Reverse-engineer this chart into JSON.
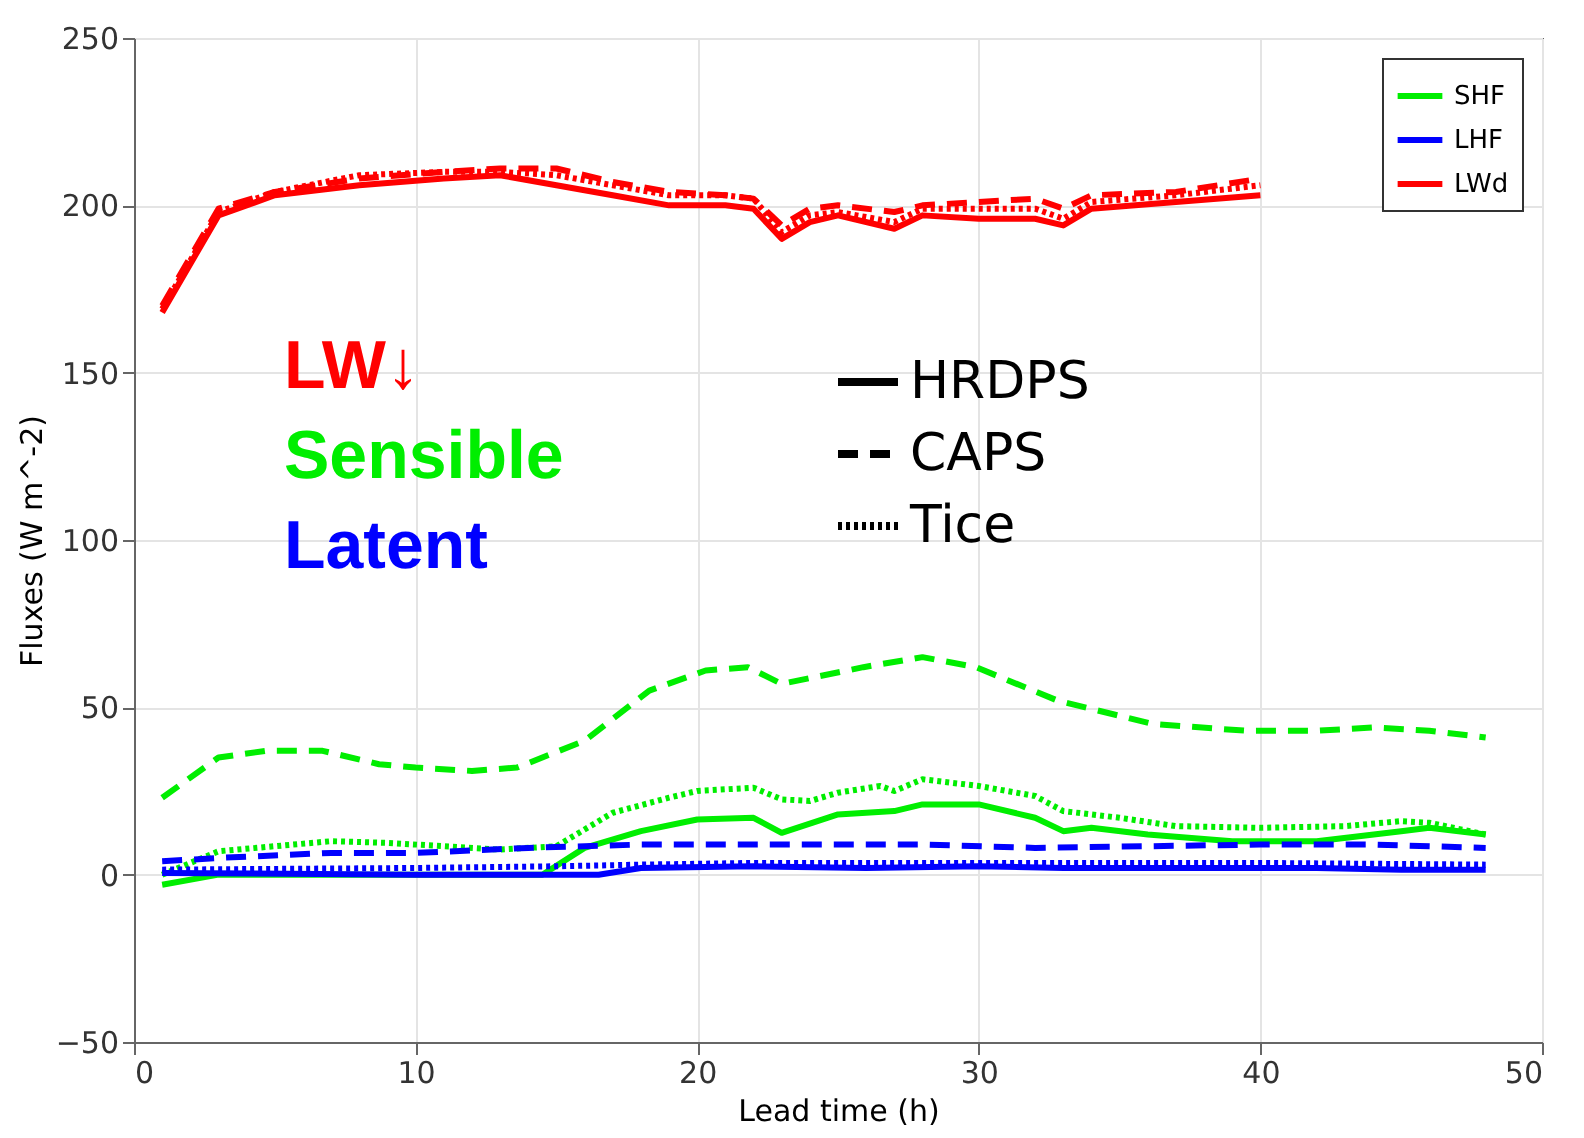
{
  "chart_data": {
    "type": "line",
    "xlabel": "Lead time (h)",
    "ylabel": "Fluxes (W m^-2)",
    "xlim": [
      0,
      50
    ],
    "xticks": [
      0,
      10,
      20,
      30,
      40,
      50
    ],
    "ylim": [
      -50,
      250
    ],
    "yticks": [
      -50,
      0,
      50,
      100,
      150,
      200,
      250
    ],
    "grid": true,
    "legend": "top right",
    "marker": "none",
    "annotations": [
      "LW↓",
      "Sensible",
      "Latent",
      "HRDPS",
      "CAPS",
      "Tice"
    ],
    "series": [
      {
        "name": "SHF",
        "color": "#00ee00",
        "line_style": "solid",
        "x": [
          1,
          3,
          7,
          10,
          14.5,
          16,
          18,
          20,
          22,
          23,
          25,
          27,
          28,
          30,
          32,
          33,
          34,
          36,
          39,
          42,
          45,
          46,
          48
        ],
        "values": [
          -3,
          0,
          0,
          0,
          0,
          8,
          13,
          16.5,
          17,
          12.5,
          18,
          19,
          21,
          21,
          17,
          13,
          14,
          12,
          10,
          10,
          13,
          14,
          12
        ]
      },
      {
        "color": "#00ee00",
        "line_style": "dashed",
        "x": [
          1,
          3,
          4.7,
          6.7,
          8.7,
          10,
          12,
          13.6,
          16,
          18.3,
          20.3,
          21.8,
          23,
          25.9,
          28,
          29.9,
          32.8,
          36.2,
          39.5,
          42,
          44,
          46,
          48
        ],
        "values": [
          23,
          35,
          37,
          37,
          33,
          32,
          31,
          32,
          40,
          55,
          61,
          62,
          57,
          62,
          65,
          62,
          52,
          45,
          43,
          43,
          44,
          43,
          41
        ]
      },
      {
        "color": "#00ee00",
        "line_style": "dotted",
        "x": [
          1,
          3,
          5,
          7,
          9,
          11,
          13,
          15,
          17,
          19,
          20,
          22,
          23,
          24,
          25,
          26.5,
          27,
          28,
          30,
          32,
          33,
          35,
          37,
          40,
          43,
          45,
          46,
          48
        ],
        "values": [
          0,
          7,
          8.5,
          10,
          9.5,
          8.5,
          7.5,
          8.5,
          18.5,
          23,
          25,
          26,
          22.5,
          22,
          24.5,
          26.5,
          25,
          28.5,
          26.5,
          23.5,
          19,
          17,
          14.5,
          14,
          14.5,
          16,
          15.5,
          12
        ]
      },
      {
        "name": "LHF",
        "color": "#0000ff",
        "line_style": "solid",
        "x": [
          1,
          10,
          15,
          16.5,
          18,
          22,
          26,
          30,
          33,
          38,
          42,
          45,
          48
        ],
        "values": [
          0.5,
          0,
          0,
          0,
          2,
          2.5,
          2,
          2.5,
          2,
          2,
          2,
          1.5,
          1.5
        ]
      },
      {
        "color": "#0000ff",
        "line_style": "dashed",
        "x": [
          1,
          3,
          7,
          10,
          14,
          16,
          18,
          20,
          24,
          28,
          32,
          36,
          40,
          44,
          48
        ],
        "values": [
          4,
          5,
          6.5,
          6.5,
          8,
          8.5,
          9,
          9,
          9,
          9,
          8,
          8.5,
          9,
          9,
          8
        ]
      },
      {
        "color": "#0000ff",
        "line_style": "dotted",
        "x": [
          1,
          10,
          15,
          18,
          22,
          30,
          40,
          48
        ],
        "values": [
          1.5,
          2,
          2.5,
          3,
          3.5,
          3.5,
          3.5,
          3
        ]
      },
      {
        "name": "LWd",
        "color": "#ff0000",
        "line_style": "solid",
        "x": [
          1,
          3,
          5,
          8,
          11,
          13,
          15,
          17,
          19,
          21,
          22,
          23,
          24,
          25,
          27,
          28,
          30,
          32,
          33,
          34,
          37,
          40
        ],
        "values": [
          168,
          197,
          203,
          206,
          208,
          209,
          206,
          203,
          200,
          200,
          199,
          190,
          195,
          197,
          193,
          197,
          196,
          196,
          194,
          199,
          201,
          203
        ]
      },
      {
        "color": "#ff0000",
        "line_style": "dashed",
        "x": [
          1,
          3,
          5,
          8,
          11,
          13,
          15,
          17,
          19,
          21,
          22,
          23,
          24,
          25,
          27,
          28,
          30,
          32,
          33,
          34,
          37,
          40
        ],
        "values": [
          170,
          199,
          204,
          208,
          210,
          211,
          211,
          207,
          204,
          203,
          202,
          194,
          199,
          200,
          198,
          200,
          201,
          202,
          199,
          203,
          204,
          208
        ]
      },
      {
        "color": "#ff0000",
        "line_style": "dotted",
        "x": [
          1,
          3,
          5,
          8,
          11,
          13,
          15,
          17,
          19,
          21,
          22,
          23,
          24,
          25,
          27,
          28,
          30,
          32,
          33,
          34,
          37,
          40
        ],
        "values": [
          169,
          198,
          204,
          209,
          210,
          210,
          209,
          206,
          203,
          203,
          202,
          192,
          197,
          198,
          195,
          199,
          199,
          199,
          196,
          201,
          203,
          206
        ]
      }
    ]
  }
}
